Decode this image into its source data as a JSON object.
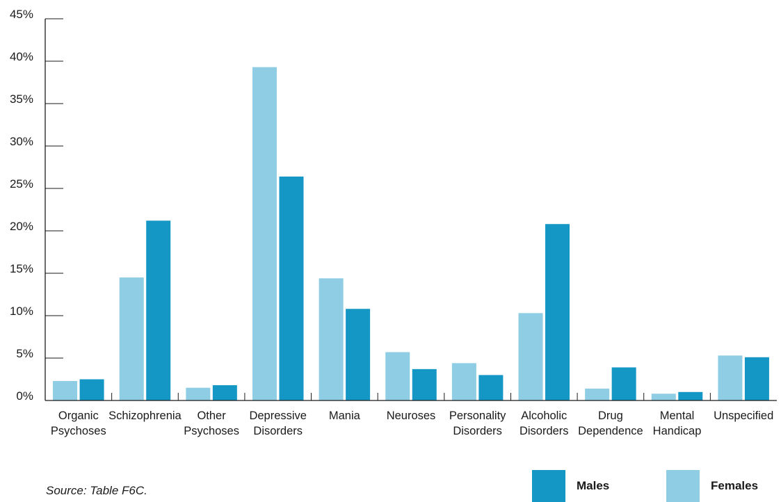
{
  "source_note": "Source: Table F6C.",
  "colors": {
    "Females": "#8ecde3",
    "Males": "#1497c5",
    "axis": "#1a1a1a"
  },
  "legend": [
    {
      "label": "Males",
      "color": "#1497c5"
    },
    {
      "label": "Females",
      "color": "#8ecde3"
    }
  ],
  "chart_data": {
    "type": "bar",
    "title": "",
    "xlabel": "",
    "ylabel": "",
    "ylim": [
      0,
      45
    ],
    "yticks": [
      "0%",
      "5%",
      "10%",
      "15%",
      "20%",
      "25%",
      "30%",
      "35%",
      "40%",
      "45%"
    ],
    "categories": [
      [
        "Organic",
        "Psychoses"
      ],
      [
        "Schizophrenia"
      ],
      [
        "Other",
        "Psychoses"
      ],
      [
        "Depressive",
        "Disorders"
      ],
      [
        "Mania"
      ],
      [
        "Neuroses"
      ],
      [
        "Personality",
        "Disorders"
      ],
      [
        "Alcoholic",
        "Disorders"
      ],
      [
        "Drug",
        "Dependence"
      ],
      [
        "Mental",
        "Handicap"
      ],
      [
        "Unspecified"
      ]
    ],
    "series": [
      {
        "name": "Females",
        "values": [
          2.3,
          14.5,
          1.5,
          39.3,
          14.4,
          5.7,
          4.4,
          10.3,
          1.4,
          0.8,
          5.3
        ]
      },
      {
        "name": "Males",
        "values": [
          2.5,
          21.2,
          1.8,
          26.4,
          10.8,
          3.7,
          3.0,
          20.8,
          3.9,
          1.0,
          5.1
        ]
      }
    ],
    "legend_position": "bottom-right",
    "grid": false
  }
}
